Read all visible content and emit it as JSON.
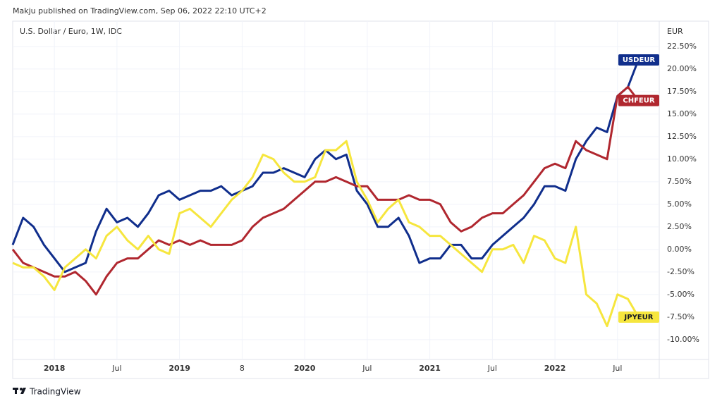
{
  "header": "Makju published on TradingView.com, Sep 06, 2022 22:10 UTC+2",
  "footer": "TradingView",
  "chart_data": {
    "type": "line",
    "title": "U.S. Dollar / Euro, 1W, IDC",
    "y_axis_label": "EUR",
    "x": [
      "2017-09",
      "2017-10",
      "2017-11",
      "2017-12",
      "2018-01",
      "2018-02",
      "2018-03",
      "2018-04",
      "2018-05",
      "2018-06",
      "2018-07",
      "2018-08",
      "2018-09",
      "2018-10",
      "2018-11",
      "2018-12",
      "2019-01",
      "2019-02",
      "2019-03",
      "2019-04",
      "2019-05",
      "2019-06",
      "2019-07",
      "2019-08",
      "2019-09",
      "2019-10",
      "2019-11",
      "2019-12",
      "2020-01",
      "2020-02",
      "2020-03",
      "2020-04",
      "2020-05",
      "2020-06",
      "2020-07",
      "2020-08",
      "2020-09",
      "2020-10",
      "2020-11",
      "2020-12",
      "2021-01",
      "2021-02",
      "2021-03",
      "2021-04",
      "2021-05",
      "2021-06",
      "2021-07",
      "2021-08",
      "2021-09",
      "2021-10",
      "2021-11",
      "2021-12",
      "2022-01",
      "2022-02",
      "2022-03",
      "2022-04",
      "2022-05",
      "2022-06",
      "2022-07",
      "2022-08",
      "2022-09"
    ],
    "series": [
      {
        "name": "USDEUR",
        "color": "#102e8c",
        "values": [
          0.5,
          3.5,
          2.5,
          0.5,
          -1,
          -2.5,
          -2,
          -1.5,
          2,
          4.5,
          3,
          3.5,
          2.5,
          4,
          6,
          6.5,
          5.5,
          6,
          6.5,
          6.5,
          7,
          6,
          6.5,
          7,
          8.5,
          8.5,
          9,
          8.5,
          8,
          10,
          11,
          10,
          10.5,
          6.5,
          5,
          2.5,
          2.5,
          3.5,
          1.5,
          -1.5,
          -1,
          -1,
          0.5,
          0.5,
          -1,
          -1,
          0.5,
          1.5,
          2.5,
          3.5,
          5,
          7,
          7,
          6.5,
          10,
          12,
          13.5,
          13,
          17,
          18,
          21
        ]
      },
      {
        "name": "CHFEUR",
        "color": "#b0272f",
        "values": [
          0,
          -1.5,
          -2,
          -2.5,
          -3,
          -3,
          -2.5,
          -3.5,
          -5,
          -3,
          -1.5,
          -1,
          -1,
          0,
          1,
          0.5,
          1,
          0.5,
          1,
          0.5,
          0.5,
          0.5,
          1,
          2.5,
          3.5,
          4,
          4.5,
          5.5,
          6.5,
          7.5,
          7.5,
          8,
          7.5,
          7,
          7,
          5.5,
          5.5,
          5.5,
          6,
          5.5,
          5.5,
          5,
          3,
          2,
          2.5,
          3.5,
          4,
          4,
          5,
          6,
          7.5,
          9,
          9.5,
          9,
          12,
          11,
          10.5,
          10,
          17,
          18,
          16.5
        ]
      },
      {
        "name": "JPYEUR",
        "color": "#f6e63e",
        "values": [
          -1.5,
          -2,
          -2,
          -3,
          -4.5,
          -2,
          -1,
          0,
          -1,
          1.5,
          2.5,
          1,
          0,
          1.5,
          0,
          -0.5,
          4,
          4.5,
          3.5,
          2.5,
          4,
          5.5,
          6.5,
          8,
          10.5,
          10,
          8.5,
          7.5,
          7.5,
          8,
          11,
          11,
          12,
          7.5,
          5.5,
          3,
          4.5,
          5.5,
          3,
          2.5,
          1.5,
          1.5,
          0.5,
          -0.5,
          -1.5,
          -2.5,
          0,
          0,
          0.5,
          -1.5,
          1.5,
          1,
          -1,
          -1.5,
          2.5,
          -5,
          -6,
          -8.5,
          -5,
          -5.5,
          -7.5
        ]
      }
    ],
    "xlim": [
      "2017-09",
      "2022-11"
    ],
    "xticks": [
      {
        "value": "2018-01",
        "label": "2018"
      },
      {
        "value": "2018-07",
        "label": "Jul"
      },
      {
        "value": "2019-01",
        "label": "2019"
      },
      {
        "value": "2019-07",
        "label": "8"
      },
      {
        "value": "2020-01",
        "label": "2020"
      },
      {
        "value": "2020-07",
        "label": "Jul"
      },
      {
        "value": "2021-01",
        "label": "2021"
      },
      {
        "value": "2021-07",
        "label": "Jul"
      },
      {
        "value": "2022-01",
        "label": "2022"
      },
      {
        "value": "2022-07",
        "label": "Jul"
      }
    ],
    "ylim": [
      -12.2,
      25.3
    ],
    "yticks": [
      {
        "value": -10,
        "label": "-10.00%"
      },
      {
        "value": -7.5,
        "label": "-7.50%"
      },
      {
        "value": -5,
        "label": "-5.00%"
      },
      {
        "value": -2.5,
        "label": "-2.50%"
      },
      {
        "value": 0,
        "label": "0.00%"
      },
      {
        "value": 2.5,
        "label": "2.50%"
      },
      {
        "value": 5,
        "label": "5.00%"
      },
      {
        "value": 7.5,
        "label": "7.50%"
      },
      {
        "value": 10,
        "label": "10.00%"
      },
      {
        "value": 12.5,
        "label": "12.50%"
      },
      {
        "value": 15,
        "label": "15.00%"
      },
      {
        "value": 17.5,
        "label": "17.50%"
      },
      {
        "value": 20,
        "label": "20.00%"
      },
      {
        "value": 22.5,
        "label": "22.50%"
      }
    ],
    "grid": true
  }
}
